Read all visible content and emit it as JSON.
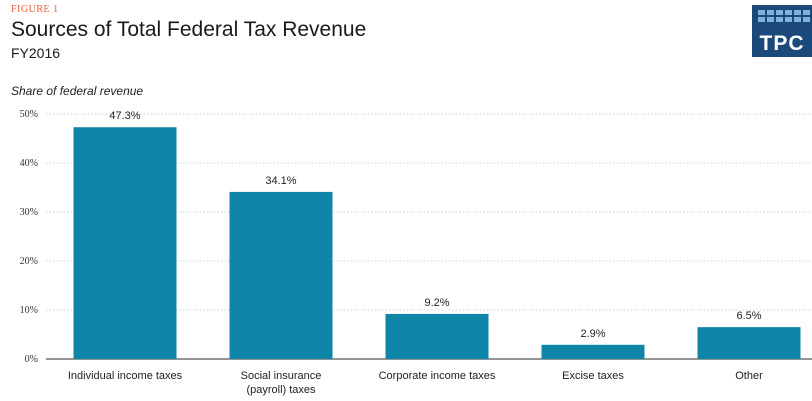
{
  "figure_label": "FIGURE 1",
  "title": "Sources of Total Federal Tax Revenue",
  "subtitle": "FY2016",
  "logo_text": "TPC",
  "colors": {
    "bar": "#0f85a8",
    "grid": "#cfcfcf",
    "axis": "#555555",
    "logo_bg": "#1b4a7a",
    "figure_label": "#e8603c"
  },
  "chart_data": {
    "type": "bar",
    "title": "Sources of Total Federal Tax Revenue",
    "subtitle": "FY2016",
    "ylabel": "Share of federal revenue",
    "xlabel": "",
    "categories": [
      [
        "Individual income taxes"
      ],
      [
        "Social insurance",
        "(payroll) taxes"
      ],
      [
        "Corporate income taxes"
      ],
      [
        "Excise taxes"
      ],
      [
        "Other"
      ]
    ],
    "values": [
      47.3,
      34.1,
      9.2,
      2.9,
      6.5
    ],
    "value_labels": [
      "47.3%",
      "34.1%",
      "9.2%",
      "2.9%",
      "6.5%"
    ],
    "ylim": [
      0,
      50
    ],
    "yticks": [
      0,
      10,
      20,
      30,
      40,
      50
    ],
    "ytick_labels": [
      "0%",
      "10%",
      "20%",
      "30%",
      "40%",
      "50%"
    ],
    "grid": true,
    "legend": "none"
  }
}
